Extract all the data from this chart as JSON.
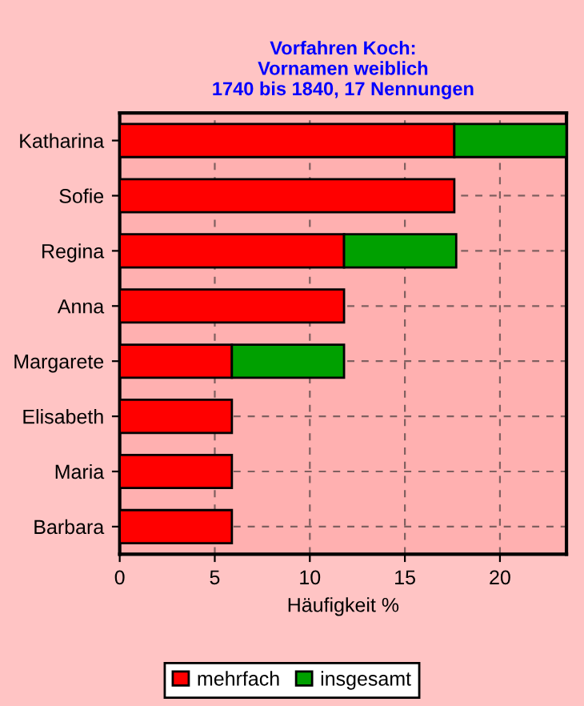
{
  "chart_data": {
    "type": "bar",
    "orientation": "horizontal",
    "stacked": true,
    "title": "Vorfahren Koch:\nVornamen weiblich\n1740 bis 1840, 17 Nennungen",
    "xlabel": "Häufigkeit %",
    "categories": [
      "Katharina",
      "Sofie",
      "Regina",
      "Anna",
      "Margarete",
      "Elisabeth",
      "Maria",
      "Barbara"
    ],
    "series": [
      {
        "name": "mehrfach",
        "color": "#ff0000",
        "values": [
          17.6,
          17.6,
          11.8,
          11.8,
          5.9,
          5.9,
          5.9,
          5.9
        ]
      },
      {
        "name": "insgesamt",
        "color": "#00a000",
        "values": [
          5.9,
          null,
          5.9,
          null,
          5.9,
          null,
          null,
          null
        ]
      }
    ],
    "xlim": [
      0,
      23.5
    ],
    "xticks": [
      0,
      5,
      10,
      15,
      20
    ],
    "grid": true,
    "legend": "bottom"
  }
}
